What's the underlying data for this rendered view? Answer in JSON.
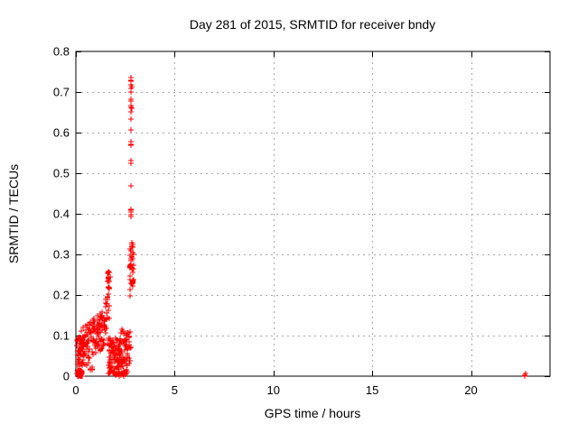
{
  "window": {
    "background": "#ffffff"
  },
  "chart_data": {
    "type": "scatter",
    "title": "Day 281 of 2015, SRMTID for receiver bndy",
    "xlabel": "GPS time / hours",
    "ylabel": "SRMTID / TECUs",
    "xlim": [
      0,
      24
    ],
    "ylim": [
      0,
      0.8
    ],
    "xticks": [
      0,
      5,
      10,
      15,
      20
    ],
    "yticks": [
      0,
      0.1,
      0.2,
      0.3,
      0.4,
      0.5,
      0.6,
      0.7,
      0.8
    ],
    "grid": true,
    "legend": "none",
    "marker": {
      "shape": "plus",
      "color": "#ff0000",
      "size": 7
    },
    "frame_color": "#000000",
    "grid_color": "#a8a8a8",
    "text_color": "#000000",
    "seed": 7,
    "points": [
      [
        2.79,
        0.735
      ],
      [
        2.81,
        0.73
      ],
      [
        2.77,
        0.726
      ],
      [
        2.8,
        0.718
      ],
      [
        2.82,
        0.714
      ],
      [
        2.78,
        0.71
      ],
      [
        2.8,
        0.7
      ],
      [
        2.79,
        0.682
      ],
      [
        2.81,
        0.678
      ],
      [
        2.77,
        0.667
      ],
      [
        2.79,
        0.663
      ],
      [
        2.82,
        0.66
      ],
      [
        2.8,
        0.652
      ],
      [
        2.8,
        0.633
      ],
      [
        2.79,
        0.607
      ],
      [
        2.78,
        0.578
      ],
      [
        2.8,
        0.572
      ],
      [
        2.81,
        0.568
      ],
      [
        2.78,
        0.532
      ],
      [
        2.8,
        0.525
      ],
      [
        2.79,
        0.47
      ],
      [
        2.77,
        0.412
      ],
      [
        2.79,
        0.408
      ],
      [
        2.81,
        0.404
      ],
      [
        2.78,
        0.398
      ],
      [
        2.8,
        0.394
      ],
      [
        2.82,
        0.33
      ],
      [
        0.15,
        0.0
      ],
      [
        0.2,
        0.004
      ],
      [
        0.24,
        0.002
      ],
      [
        22.74,
        0.0
      ],
      [
        22.75,
        0.007
      ],
      [
        22.74,
        0.003
      ]
    ],
    "clusters": [
      {
        "n": 45,
        "x": [
          0.04,
          0.3
        ],
        "y": [
          0.0,
          0.098
        ]
      },
      {
        "n": 35,
        "x": [
          0.1,
          0.32
        ],
        "y": [
          0.0,
          0.014
        ]
      },
      {
        "n": 135,
        "x": [
          0.25,
          1.42
        ],
        "yc": [
          0.068,
          0.118
        ],
        "spread": 0.048
      },
      {
        "n": 10,
        "x": [
          0.3,
          1.0
        ],
        "y": [
          0.008,
          0.035
        ]
      },
      {
        "n": 30,
        "x": [
          1.42,
          1.72
        ],
        "yc": [
          0.13,
          0.2
        ],
        "spread": 0.05
      },
      {
        "n": 14,
        "x": [
          1.56,
          1.7
        ],
        "y": [
          0.17,
          0.262
        ]
      },
      {
        "n": 150,
        "x": [
          1.62,
          2.62
        ],
        "yc": [
          0.05,
          0.044
        ],
        "spread": 0.046
      },
      {
        "n": 9,
        "x": [
          2.25,
          2.62
        ],
        "y": [
          0.088,
          0.115
        ]
      },
      {
        "n": 12,
        "x": [
          1.85,
          2.45
        ],
        "y": [
          0.0,
          0.008
        ]
      },
      {
        "n": 16,
        "x": [
          2.56,
          2.82
        ],
        "y": [
          0.03,
          0.118
        ]
      },
      {
        "n": 36,
        "x": [
          2.72,
          2.92
        ],
        "y": [
          0.19,
          0.335
        ]
      }
    ]
  }
}
